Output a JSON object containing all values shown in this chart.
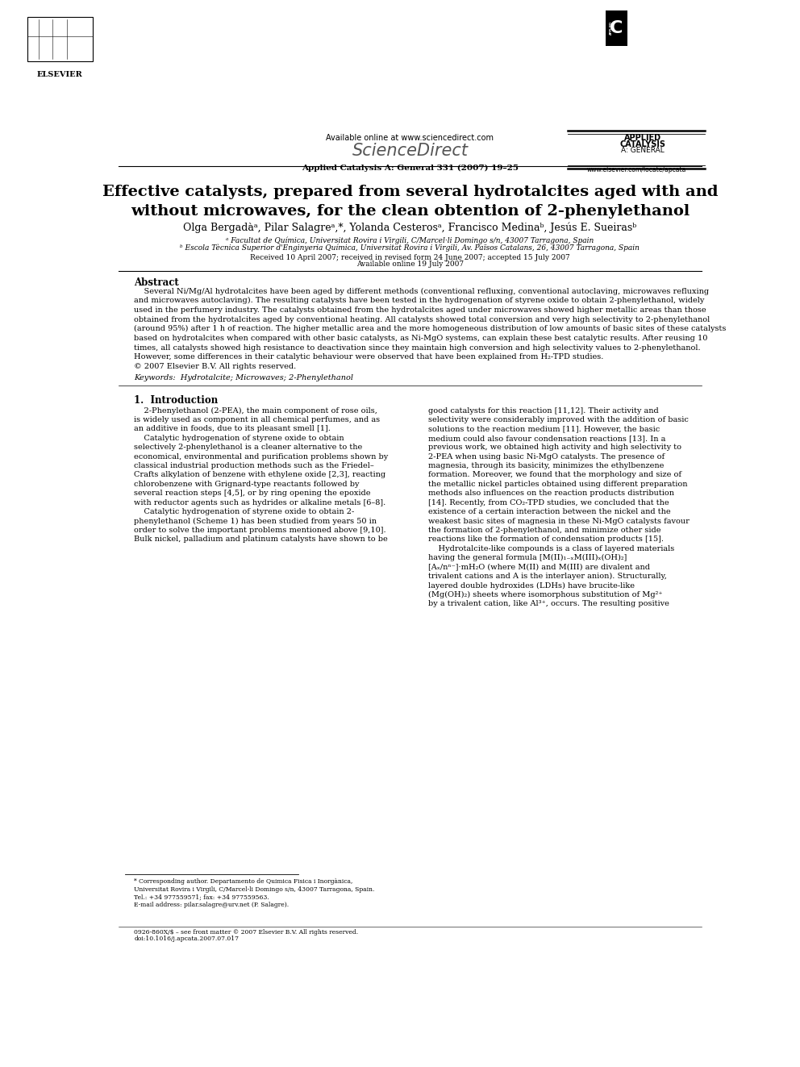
{
  "page_width": 9.92,
  "page_height": 13.23,
  "bg_color": "#ffffff",
  "available_online": "Available online at www.sciencedirect.com",
  "sciencedirect_logo": "ScienceDirect",
  "journal_text": "Applied Catalysis A: General 331 (2007) 19–25",
  "journal_name_1": "APPLIED",
  "journal_name_2": "CATALYSIS",
  "journal_name_3": "A: GENERAL",
  "website": "www.elsevier.com/locate/apcata",
  "elsevier_label": "ELSEVIER",
  "title": "Effective catalysts, prepared from several hydrotalcites aged with and\nwithout microwaves, for the clean obtention of 2-phenylethanol",
  "authors": "Olga Bergadàᵃ, Pilar Salagreᵃ,*, Yolanda Cesterosᵃ, Francisco Medinaᵇ, Jesús E. Sueirasᵇ",
  "affil_a": "ᵃ Facultat de Química, Universitat Rovira i Virgili, C/Marcel·li Domingo s/n, 43007 Tarragona, Spain",
  "affil_b": "ᵇ Escola Tècnica Superior d'Enginyeria Química, Universitat Rovira i Virgili, Av. Països Catalans, 26, 43007 Tarragona, Spain",
  "received": "Received 10 April 2007; received in revised form 24 June 2007; accepted 15 July 2007",
  "available": "Available online 19 July 2007",
  "abstract_heading": "Abstract",
  "abstract_lines": [
    "    Several Ni/Mg/Al hydrotalcites have been aged by different methods (conventional refluxing, conventional autoclaving, microwaves refluxing",
    "and microwaves autoclaving). The resulting catalysts have been tested in the hydrogenation of styrene oxide to obtain 2-phenylethanol, widely",
    "used in the perfumery industry. The catalysts obtained from the hydrotalcites aged under microwaves showed higher metallic areas than those",
    "obtained from the hydrotalcites aged by conventional heating. All catalysts showed total conversion and very high selectivity to 2-phenylethanol",
    "(around 95%) after 1 h of reaction. The higher metallic area and the more homogeneous distribution of low amounts of basic sites of these catalysts",
    "based on hydrotalcites when compared with other basic catalysts, as Ni-MgO systems, can explain these best catalytic results. After reusing 10",
    "times, all catalysts showed high resistance to deactivation since they maintain high conversion and high selectivity values to 2-phenylethanol.",
    "However, some differences in their catalytic behaviour were observed that have been explained from H₂-TPD studies.",
    "© 2007 Elsevier B.V. All rights reserved."
  ],
  "keywords": "Keywords:  Hydrotalcite; Microwaves; 2-Phenylethanol",
  "section1_title": "1.  Introduction",
  "col1_lines": [
    "    2-Phenylethanol (2-PEA), the main component of rose oils,",
    "is widely used as component in all chemical perfumes, and as",
    "an additive in foods, due to its pleasant smell [1].",
    "    Catalytic hydrogenation of styrene oxide to obtain",
    "selectively 2-phenylethanol is a cleaner alternative to the",
    "economical, environmental and purification problems shown by",
    "classical industrial production methods such as the Friedel–",
    "Crafts alkylation of benzene with ethylene oxide [2,3], reacting",
    "chlorobenzene with Grignard-type reactants followed by",
    "several reaction steps [4,5], or by ring opening the epoxide",
    "with reductor agents such as hydrides or alkaline metals [6–8].",
    "    Catalytic hydrogenation of styrene oxide to obtain 2-",
    "phenylethanol (Scheme 1) has been studied from years 50 in",
    "order to solve the important problems mentioned above [9,10].",
    "Bulk nickel, palladium and platinum catalysts have shown to be"
  ],
  "col2_lines": [
    "good catalysts for this reaction [11,12]. Their activity and",
    "selectivity were considerably improved with the addition of basic",
    "solutions to the reaction medium [11]. However, the basic",
    "medium could also favour condensation reactions [13]. In a",
    "previous work, we obtained high activity and high selectivity to",
    "2-PEA when using basic Ni-MgO catalysts. The presence of",
    "magnesia, through its basicity, minimizes the ethylbenzene",
    "formation. Moreover, we found that the morphology and size of",
    "the metallic nickel particles obtained using different preparation",
    "methods also influences on the reaction products distribution",
    "[14]. Recently, from CO₂-TPD studies, we concluded that the",
    "existence of a certain interaction between the nickel and the",
    "weakest basic sites of magnesia in these Ni-MgO catalysts favour",
    "the formation of 2-phenylethanol, and minimize other side",
    "reactions like the formation of condensation products [15].",
    "    Hydrotalcite-like compounds is a class of layered materials",
    "having the general formula [M(II)₁₋ₓM(III)ₓ(OH)₂]",
    "[Aₓ/nⁿ⁻]·mH₂O (where M(II) and M(III) are divalent and",
    "trivalent cations and A is the interlayer anion). Structurally,",
    "layered double hydroxides (LDHs) have brucite-like",
    "(Mg(OH)₂) sheets where isomorphous substitution of Mg²⁺",
    "by a trivalent cation, like Al³⁺, occurs. The resulting positive"
  ],
  "footnote_lines": [
    "* Corresponding author. Departamento de Quimica Fisica i Inorgànica,",
    "Universitat Rovira i Virgili, C/Marcel-li Domingo s/n, 43007 Tarragona, Spain.",
    "Tel.: +34 977559571; fax: +34 977559563.",
    "E-mail address: pilar.salagre@urv.net (P. Salagre)."
  ],
  "footer_line1": "0926-860X/$ – see front matter © 2007 Elsevier B.V. All rights reserved.",
  "footer_line2": "doi:10.1016/j.apcata.2007.07.017"
}
